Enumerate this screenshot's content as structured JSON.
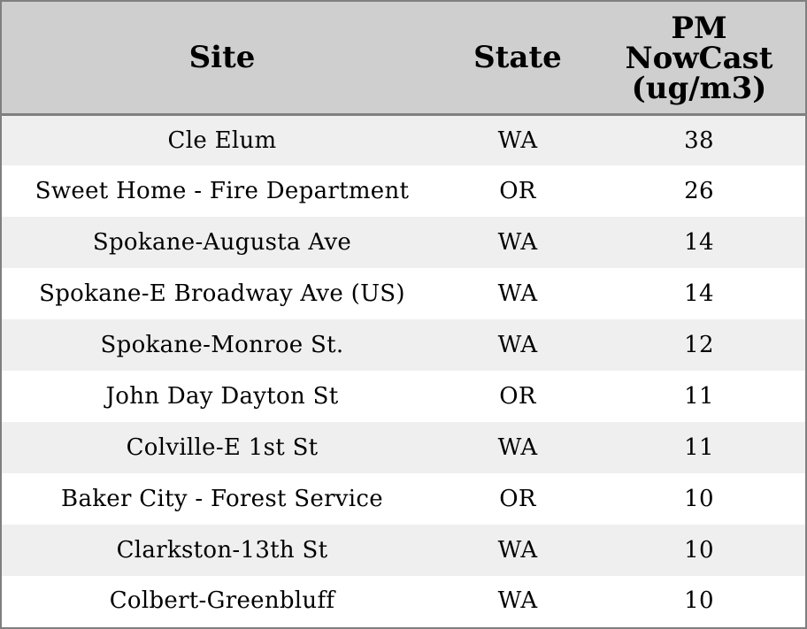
{
  "chart_data": {
    "type": "table",
    "columns": [
      {
        "key": "site",
        "label": "Site"
      },
      {
        "key": "state",
        "label": "State"
      },
      {
        "key": "pm",
        "label_lines": [
          "PM",
          "NowCast",
          "(ug/m3)"
        ]
      }
    ],
    "rows": [
      {
        "site": "Cle Elum",
        "state": "WA",
        "pm": "38"
      },
      {
        "site": "Sweet Home - Fire Department",
        "state": "OR",
        "pm": "26"
      },
      {
        "site": "Spokane-Augusta Ave",
        "state": "WA",
        "pm": "14"
      },
      {
        "site": "Spokane-E Broadway Ave (US)",
        "state": "WA",
        "pm": "14"
      },
      {
        "site": "Spokane-Monroe St.",
        "state": "WA",
        "pm": "12"
      },
      {
        "site": "John Day Dayton St",
        "state": "OR",
        "pm": "11"
      },
      {
        "site": "Colville-E 1st St",
        "state": "WA",
        "pm": "11"
      },
      {
        "site": "Baker City - Forest Service",
        "state": "OR",
        "pm": "10"
      },
      {
        "site": "Clarkston-13th St",
        "state": "WA",
        "pm": "10"
      },
      {
        "site": "Colbert-Greenbluff",
        "state": "WA",
        "pm": "10"
      }
    ]
  },
  "colors": {
    "header_bg": "#cfcfcf",
    "row_alt_bg": "#efefef",
    "row_bg": "#ffffff",
    "border": "#7f7f7f",
    "text": "#000000"
  }
}
